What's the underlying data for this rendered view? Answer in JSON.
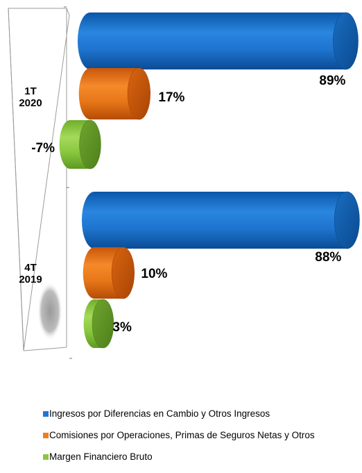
{
  "chart_data": {
    "type": "bar",
    "orientation": "horizontal",
    "style": "3d-cylinder",
    "categories": [
      "1T 2020",
      "4T 2019"
    ],
    "series": [
      {
        "name": "Ingresos por Diferencias en Cambio y Otros Ingresos",
        "values": [
          89,
          88
        ],
        "labels": [
          "89%",
          "88%"
        ],
        "color": "#1F77D4"
      },
      {
        "name": "Comisiones por Operaciones, Primas de Seguros Netas y Otros",
        "values": [
          17,
          10
        ],
        "labels": [
          "17%",
          "10%"
        ],
        "color": "#F07F1A"
      },
      {
        "name": "Margen Financiero Bruto",
        "values": [
          -7,
          3
        ],
        "labels": [
          "-7%",
          "3%"
        ],
        "color": "#8CC63F"
      }
    ],
    "axis_range": [
      -10,
      100
    ],
    "legend_position": "bottom"
  }
}
